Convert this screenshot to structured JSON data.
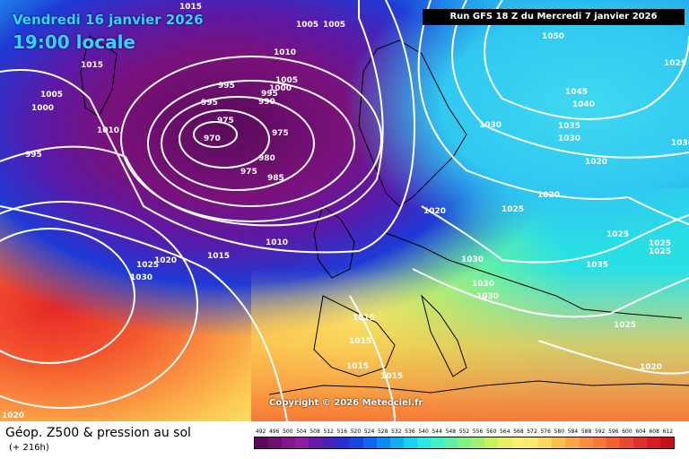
{
  "header": {
    "date": "Vendredi 16 janvier 2026",
    "time": "19:00 locale",
    "run": "Run GFS 18 Z du Mercredi 7 janvier 2026"
  },
  "copyright": "Copyright © 2026 Meteociel.fr",
  "legend": {
    "title": "Géop. Z500 & pression au sol",
    "subtitle": "(+ 216h)",
    "ticks": [
      "492",
      "496",
      "500",
      "504",
      "508",
      "512",
      "516",
      "520",
      "524",
      "528",
      "532",
      "536",
      "540",
      "544",
      "548",
      "552",
      "556",
      "560",
      "564",
      "568",
      "572",
      "576",
      "580",
      "584",
      "588",
      "592",
      "596",
      "600",
      "604",
      "608",
      "612"
    ],
    "colors": [
      "#5a0a5a",
      "#6e1070",
      "#82168a",
      "#8e1ea0",
      "#6a1aa8",
      "#4a22b8",
      "#2a2ed0",
      "#1846e6",
      "#1066f0",
      "#0e8af4",
      "#12aef4",
      "#1ad0f0",
      "#2ae8e0",
      "#40f0c8",
      "#5ef0a8",
      "#80f088",
      "#a4f070",
      "#c8f060",
      "#e8f060",
      "#f8f070",
      "#fae870",
      "#fcd860",
      "#fcc050",
      "#fca848",
      "#fc9040",
      "#fa7838",
      "#f46030",
      "#ec4830",
      "#e03030",
      "#d81e24",
      "#c81018"
    ]
  },
  "isobars": [
    {
      "text": "1015",
      "pos": "top-left"
    },
    {
      "text": "1005",
      "pos": "top-center"
    },
    {
      "text": "1005",
      "pos": "top-center-2"
    },
    {
      "text": "1010",
      "pos": "upper-center"
    },
    {
      "text": "1015",
      "pos": "upper-left"
    },
    {
      "text": "1005",
      "pos": "left"
    },
    {
      "text": "1000",
      "pos": "left"
    },
    {
      "text": "1010",
      "pos": "left"
    },
    {
      "text": "995",
      "pos": "far-left"
    },
    {
      "text": "995",
      "pos": "low-center"
    },
    {
      "text": "995",
      "pos": "low-center"
    },
    {
      "text": "990",
      "pos": "low-center"
    },
    {
      "text": "1000",
      "pos": "low-center"
    },
    {
      "text": "1005",
      "pos": "low-center"
    },
    {
      "text": "995",
      "pos": "low-center"
    },
    {
      "text": "975",
      "pos": "low-center"
    },
    {
      "text": "970",
      "pos": "low-center"
    },
    {
      "text": "975",
      "pos": "low-center"
    },
    {
      "text": "980",
      "pos": "low-center"
    },
    {
      "text": "975",
      "pos": "low-center"
    },
    {
      "text": "985",
      "pos": "low-center"
    },
    {
      "text": "1050",
      "pos": "east"
    },
    {
      "text": "1025",
      "pos": "east"
    },
    {
      "text": "1045",
      "pos": "east"
    },
    {
      "text": "1040",
      "pos": "east"
    },
    {
      "text": "1035",
      "pos": "east"
    },
    {
      "text": "1030",
      "pos": "east"
    },
    {
      "text": "1030",
      "pos": "center"
    },
    {
      "text": "1020",
      "pos": "east"
    },
    {
      "text": "1030",
      "pos": "east"
    },
    {
      "text": "1020",
      "pos": "center"
    },
    {
      "text": "1025",
      "pos": "center"
    },
    {
      "text": "1020",
      "pos": "center"
    },
    {
      "text": "1010",
      "pos": "center"
    },
    {
      "text": "1025",
      "pos": "east"
    },
    {
      "text": "1025",
      "pos": "east"
    },
    {
      "text": "1025",
      "pos": "east"
    },
    {
      "text": "1025",
      "pos": "west"
    },
    {
      "text": "1020",
      "pos": "west"
    },
    {
      "text": "1015",
      "pos": "west"
    },
    {
      "text": "1030",
      "pos": "west"
    },
    {
      "text": "1030",
      "pos": "center"
    },
    {
      "text": "1030",
      "pos": "center"
    },
    {
      "text": "1030",
      "pos": "center"
    },
    {
      "text": "1035",
      "pos": "east"
    },
    {
      "text": "1025",
      "pos": "east"
    },
    {
      "text": "1015",
      "pos": "south"
    },
    {
      "text": "1015",
      "pos": "south"
    },
    {
      "text": "1015",
      "pos": "south"
    },
    {
      "text": "1015",
      "pos": "south"
    },
    {
      "text": "1020",
      "pos": "south-east"
    },
    {
      "text": "1020",
      "pos": "south-west"
    }
  ]
}
